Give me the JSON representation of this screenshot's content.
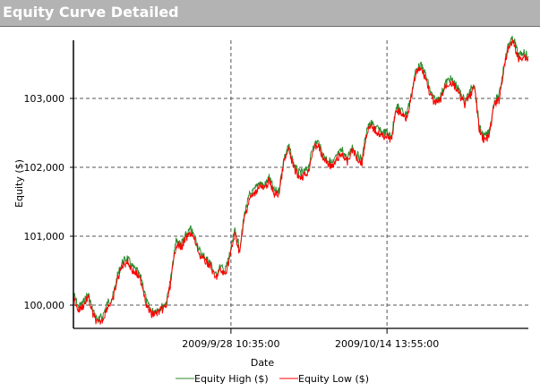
{
  "header": {
    "title": "Equity Curve Detailed"
  },
  "chart_data": {
    "type": "line",
    "title": "Equity Curve Detailed",
    "xlabel": "Date",
    "ylabel": "Equity ($)",
    "ylim": [
      99650,
      103950
    ],
    "y_ticks": [
      {
        "value": 100000,
        "label": "100,000"
      },
      {
        "value": 101000,
        "label": "101,000"
      },
      {
        "value": 102000,
        "label": "102,000"
      },
      {
        "value": 103000,
        "label": "103,000"
      }
    ],
    "x_ticks": [
      {
        "step": 32.2,
        "label": "2009/9/28 10:35:00"
      },
      {
        "step": 64.1,
        "label": "2009/10/14 13:55:00"
      }
    ],
    "grid": true,
    "legend_position": "bottom",
    "series": [
      {
        "name": "Equity High ($)",
        "color": "#2e8b2e",
        "values": [
          100143,
          99948,
          100013,
          100143,
          99883,
          99753,
          99818,
          100013,
          100078,
          100403,
          100597,
          100662,
          100532,
          100468,
          100338,
          100013,
          99883,
          99909,
          99948,
          100013,
          100403,
          100922,
          100857,
          100987,
          101078,
          100922,
          100727,
          100662,
          100597,
          100403,
          100532,
          100468,
          100727,
          101052,
          100792,
          101312,
          101571,
          101636,
          101766,
          101701,
          101831,
          101636,
          101636,
          102091,
          102286,
          102026,
          101896,
          101896,
          101961,
          102286,
          102351,
          102156,
          102091,
          102026,
          102156,
          102221,
          102091,
          102286,
          102156,
          102091,
          102545,
          102610,
          102545,
          102481,
          102481,
          102416,
          102870,
          102805,
          102740,
          103000,
          103390,
          103455,
          103325,
          103065,
          102935,
          103000,
          103195,
          103260,
          103195,
          103065,
          102935,
          103065,
          103195,
          102545,
          102416,
          102481,
          102935,
          103000,
          103455,
          103779,
          103844,
          103584,
          103649,
          103584
        ]
      },
      {
        "name": "Equity Low ($)",
        "color": "#ff0000",
        "values": [
          100143,
          99948,
          100013,
          100143,
          99883,
          99753,
          99818,
          100013,
          100078,
          100403,
          100597,
          100662,
          100532,
          100468,
          100338,
          100013,
          99883,
          99909,
          99948,
          100013,
          100403,
          100922,
          100857,
          100987,
          101078,
          100922,
          100727,
          100662,
          100597,
          100403,
          100532,
          100468,
          100727,
          101052,
          100792,
          101312,
          101571,
          101636,
          101766,
          101701,
          101831,
          101636,
          101636,
          102091,
          102286,
          102026,
          101896,
          101896,
          101961,
          102286,
          102351,
          102156,
          102091,
          102026,
          102156,
          102221,
          102091,
          102286,
          102156,
          102091,
          102545,
          102610,
          102545,
          102481,
          102481,
          102416,
          102870,
          102805,
          102740,
          103000,
          103390,
          103455,
          103325,
          103065,
          102935,
          103000,
          103195,
          103260,
          103195,
          103065,
          102935,
          103065,
          103195,
          102545,
          102416,
          102481,
          102935,
          103000,
          103455,
          103779,
          103844,
          103584,
          103649,
          103584
        ]
      }
    ]
  }
}
